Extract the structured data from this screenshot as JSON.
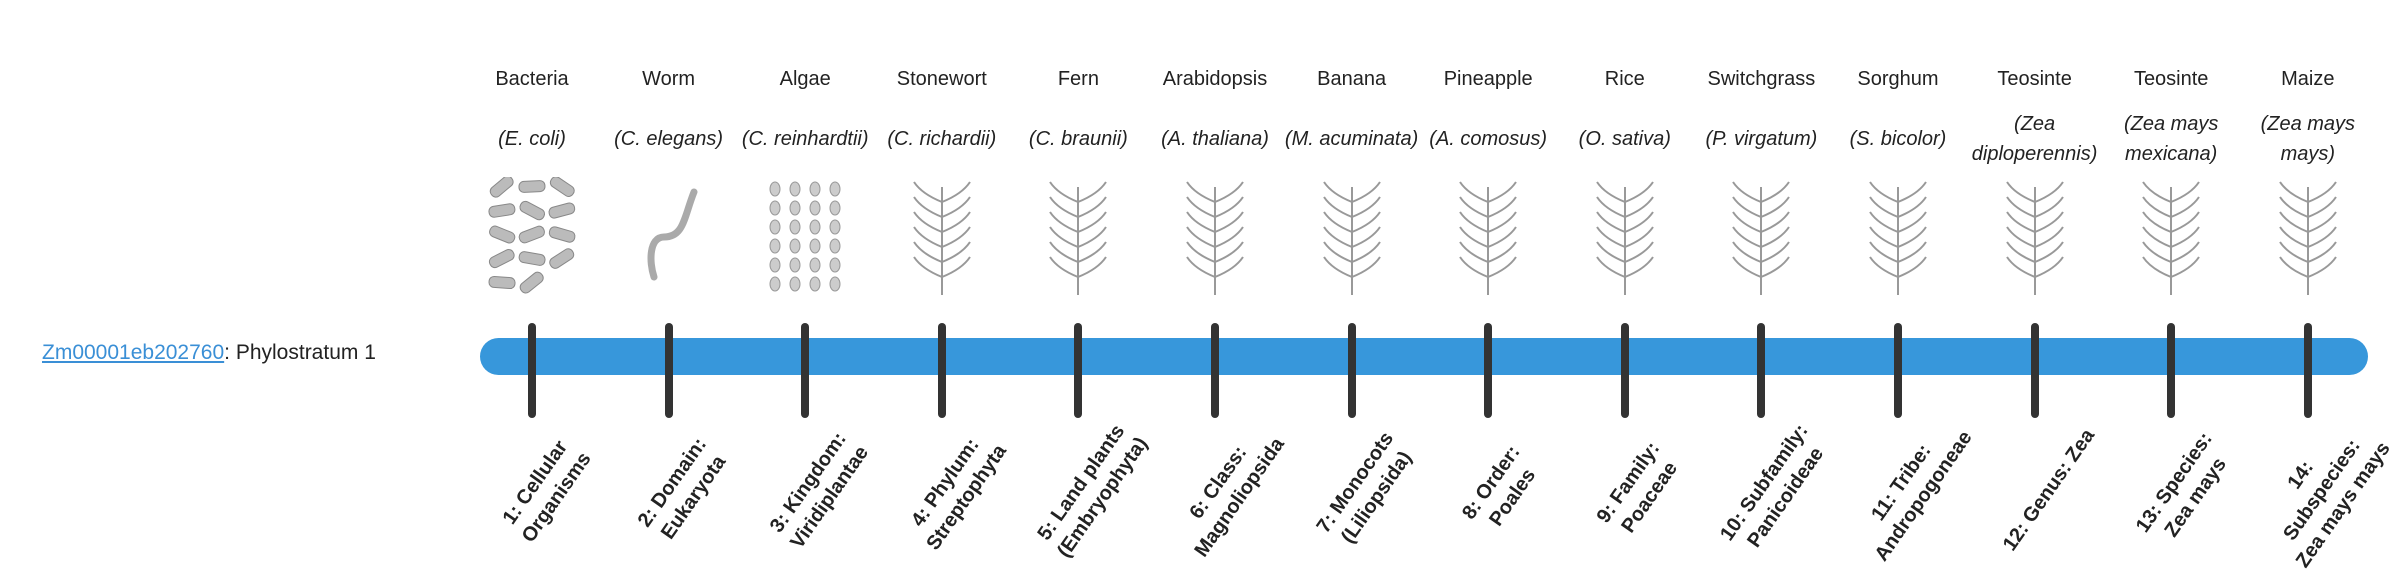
{
  "gene": {
    "id": "Zm00001eb202760",
    "suffix": ": Phylostratum 1"
  },
  "colors": {
    "bar": "#3797db",
    "tick": "#333333",
    "link": "#3a8fd6"
  },
  "organisms": [
    {
      "name": "Bacteria",
      "species": "(E. coli)",
      "icon": "bacteria-image"
    },
    {
      "name": "Worm",
      "species": "(C. elegans)",
      "icon": "worm-image"
    },
    {
      "name": "Algae",
      "species": "(C. reinhardtii)",
      "icon": "algae-image"
    },
    {
      "name": "Stonewort",
      "species": "(C. richardii)",
      "icon": "stonewort-image"
    },
    {
      "name": "Fern",
      "species": "(C. braunii)",
      "icon": "fern-image"
    },
    {
      "name": "Arabidopsis",
      "species": "(A. thaliana)",
      "icon": "arabidopsis-image"
    },
    {
      "name": "Banana",
      "species": "(M. acuminata)",
      "icon": "banana-image"
    },
    {
      "name": "Pineapple",
      "species": "(A. comosus)",
      "icon": "pineapple-image"
    },
    {
      "name": "Rice",
      "species": "(O. sativa)",
      "icon": "rice-image"
    },
    {
      "name": "Switchgrass",
      "species": "(P. virgatum)",
      "icon": "switchgrass-image"
    },
    {
      "name": "Sorghum",
      "species": "(S. bicolor)",
      "icon": "sorghum-image"
    },
    {
      "name": "Teosinte",
      "species": "(Zea diploperennis)",
      "icon": "teosinte-image"
    },
    {
      "name": "Teosinte",
      "species": "(Zea mays mexicana)",
      "icon": "teosinte-image"
    },
    {
      "name": "Maize",
      "species": "(Zea mays mays)",
      "icon": "maize-image"
    }
  ],
  "strata": [
    "1: Cellular Organisms",
    "2: Domain: Eukaryota",
    "3: Kingdom: Viridiplantae",
    "4: Phylum: Streptophyta",
    "5: Land plants (Embryophyta)",
    "6: Class: Magnoliopsida",
    "7: Monocots (Liliopsida)",
    "8: Order: Poales",
    "9: Family: Poaceae",
    "10: Subfamily: Panicoideae",
    "11: Tribe: Andropogoneae",
    "12: Genus: Zea",
    "13: Species: Zea mays",
    "14: Subspecies: Zea mays mays"
  ]
}
